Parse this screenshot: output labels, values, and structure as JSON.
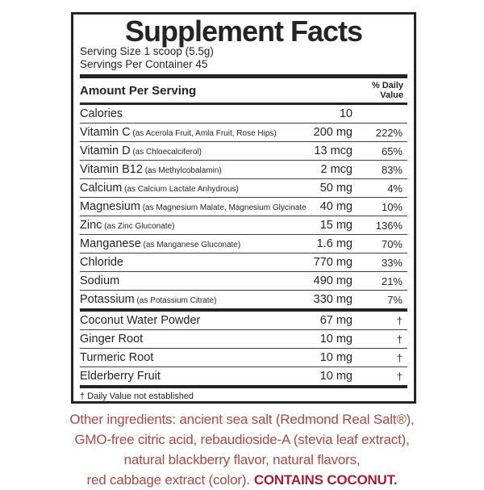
{
  "colors": {
    "ink": "#242424",
    "footer_red": "#A84A46",
    "allergen_red": "#A31F33"
  },
  "label": {
    "title": "Supplement Facts",
    "serving_size": "Serving Size 1 scoop (5.5g)",
    "servings_per_container": "Servings Per Container 45",
    "header": {
      "amount_per_serving": "Amount Per Serving",
      "daily_value_line1": "% Daily",
      "daily_value_line2": "Value"
    },
    "table": {
      "groups": [
        {
          "rows": [
            {
              "name": "Calories",
              "detail": "",
              "amount": "10",
              "dv": ""
            },
            {
              "name": "Vitamin C",
              "detail": "(as Acerola Fruit, Amla Fruit, Rose Hips)",
              "amount": "200 mg",
              "dv": "222%"
            },
            {
              "name": "Vitamin D",
              "detail": "(as Chloecalciferol)",
              "amount": "13 mcg",
              "dv": "65%"
            },
            {
              "name": "Vitamin B12",
              "detail": "(as Methylcobalamin)",
              "amount": "2 mcg",
              "dv": "83%"
            },
            {
              "name": "Calcium",
              "detail": "(as Calcium Lactate Anhydrous)",
              "amount": "50 mg",
              "dv": "4%"
            },
            {
              "name": "Magnesium",
              "detail": "(as Magnesium Malate, Magnesium Glycinate)",
              "amount": "40 mg",
              "dv": "10%"
            },
            {
              "name": "Zinc",
              "detail": "(as Zinc Gluconate)",
              "amount": "15 mg",
              "dv": "136%"
            },
            {
              "name": "Manganese",
              "detail": "(as Manganese Gluconate)",
              "amount": "1.6 mg",
              "dv": "70%"
            },
            {
              "name": "Chloride",
              "detail": "",
              "amount": "770 mg",
              "dv": "33%"
            },
            {
              "name": "Sodium",
              "detail": "",
              "amount": "490 mg",
              "dv": "21%"
            },
            {
              "name": "Potassium",
              "detail": "(as Potassium Citrate)",
              "amount": "330 mg",
              "dv": "7%"
            }
          ]
        },
        {
          "rows": [
            {
              "name": "Coconut Water Powder",
              "detail": "",
              "amount": "67 mg",
              "dv": "†"
            },
            {
              "name": "Ginger Root",
              "detail": "",
              "amount": "10 mg",
              "dv": "†"
            },
            {
              "name": "Turmeric Root",
              "detail": "",
              "amount": "10 mg",
              "dv": "†"
            },
            {
              "name": "Elderberry Fruit",
              "detail": "",
              "amount": "10 mg",
              "dv": "†"
            }
          ]
        }
      ]
    },
    "footnote": "† Daily Value not established"
  },
  "footer": {
    "lines": [
      "Other ingredients: ancient sea salt (Redmond Real Salt®),",
      "GMO-free citric acid, rebaudioside-A (stevia leaf extract),",
      "natural blackberry flavor, natural flavors,",
      "red cabbage extract (color)."
    ],
    "allergen": "CONTAINS COCONUT."
  }
}
